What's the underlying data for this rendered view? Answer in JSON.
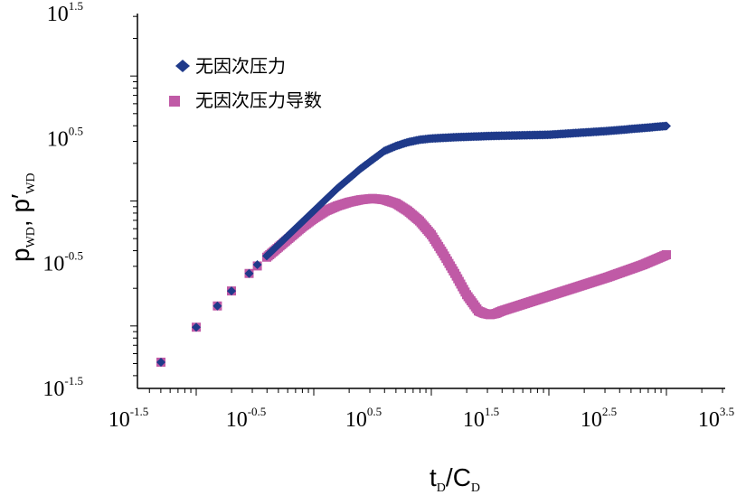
{
  "chart_data": {
    "type": "scatter",
    "xscale": "log",
    "yscale": "log",
    "xlim_log10": [
      -1.5,
      3.5
    ],
    "ylim_log10": [
      -1.5,
      1.5
    ],
    "x_ticks": [
      {
        "base": "10",
        "exp": "-1.5"
      },
      {
        "base": "10",
        "exp": "-0.5"
      },
      {
        "base": "10",
        "exp": "0.5"
      },
      {
        "base": "10",
        "exp": "1.5"
      },
      {
        "base": "10",
        "exp": "2.5"
      },
      {
        "base": "10",
        "exp": "3.5"
      }
    ],
    "y_ticks": [
      {
        "base": "10",
        "exp": "-1.5"
      },
      {
        "base": "10",
        "exp": "-0.5"
      },
      {
        "base": "10",
        "exp": "0.5"
      },
      {
        "base": "10",
        "exp": "1.5"
      }
    ],
    "xlabel": {
      "main1": "t",
      "sub1": "D",
      "slash": "/",
      "main2": "C",
      "sub2": "D"
    },
    "ylabel": {
      "p1": "p",
      "sub1": "WD",
      "comma": ", ",
      "p2": "p′",
      "sub2": "WD"
    },
    "legend_position": "top-left",
    "series": [
      {
        "name": "无因次压力",
        "marker": "diamond",
        "color": "#1f3a8a",
        "points_log10": [
          [
            -1.3,
            -1.29
          ],
          [
            -1.0,
            -1.01
          ],
          [
            -0.82,
            -0.84
          ],
          [
            -0.7,
            -0.72
          ],
          [
            -0.55,
            -0.58
          ],
          [
            -0.48,
            -0.51
          ],
          [
            -0.4,
            -0.44
          ],
          [
            -0.3,
            -0.35
          ],
          [
            -0.2,
            -0.26
          ],
          [
            -0.1,
            -0.17
          ],
          [
            0.0,
            -0.08
          ],
          [
            0.1,
            0.01
          ],
          [
            0.2,
            0.1
          ],
          [
            0.3,
            0.18
          ],
          [
            0.4,
            0.26
          ],
          [
            0.5,
            0.33
          ],
          [
            0.6,
            0.4
          ],
          [
            0.7,
            0.44
          ],
          [
            0.8,
            0.47
          ],
          [
            0.9,
            0.49
          ],
          [
            1.0,
            0.5
          ],
          [
            1.2,
            0.51
          ],
          [
            1.5,
            0.52
          ],
          [
            2.0,
            0.53
          ],
          [
            2.5,
            0.56
          ],
          [
            3.0,
            0.6
          ]
        ]
      },
      {
        "name": "无因次压力导数",
        "marker": "square",
        "color": "#c05aa6",
        "points_log10": [
          [
            -1.3,
            -1.29
          ],
          [
            -1.0,
            -1.01
          ],
          [
            -0.82,
            -0.84
          ],
          [
            -0.7,
            -0.72
          ],
          [
            -0.55,
            -0.58
          ],
          [
            -0.48,
            -0.52
          ],
          [
            -0.4,
            -0.45
          ],
          [
            -0.3,
            -0.37
          ],
          [
            -0.2,
            -0.29
          ],
          [
            -0.1,
            -0.21
          ],
          [
            0.0,
            -0.14
          ],
          [
            0.1,
            -0.08
          ],
          [
            0.2,
            -0.04
          ],
          [
            0.3,
            -0.01
          ],
          [
            0.4,
            0.01
          ],
          [
            0.5,
            0.02
          ],
          [
            0.6,
            0.01
          ],
          [
            0.7,
            -0.02
          ],
          [
            0.8,
            -0.08
          ],
          [
            0.9,
            -0.16
          ],
          [
            1.0,
            -0.27
          ],
          [
            1.1,
            -0.42
          ],
          [
            1.2,
            -0.58
          ],
          [
            1.3,
            -0.75
          ],
          [
            1.4,
            -0.88
          ],
          [
            1.45,
            -0.9
          ],
          [
            1.5,
            -0.91
          ],
          [
            1.55,
            -0.9
          ],
          [
            1.6,
            -0.88
          ],
          [
            1.8,
            -0.82
          ],
          [
            2.0,
            -0.76
          ],
          [
            2.2,
            -0.7
          ],
          [
            2.5,
            -0.61
          ],
          [
            2.8,
            -0.51
          ],
          [
            3.0,
            -0.43
          ]
        ]
      }
    ]
  }
}
